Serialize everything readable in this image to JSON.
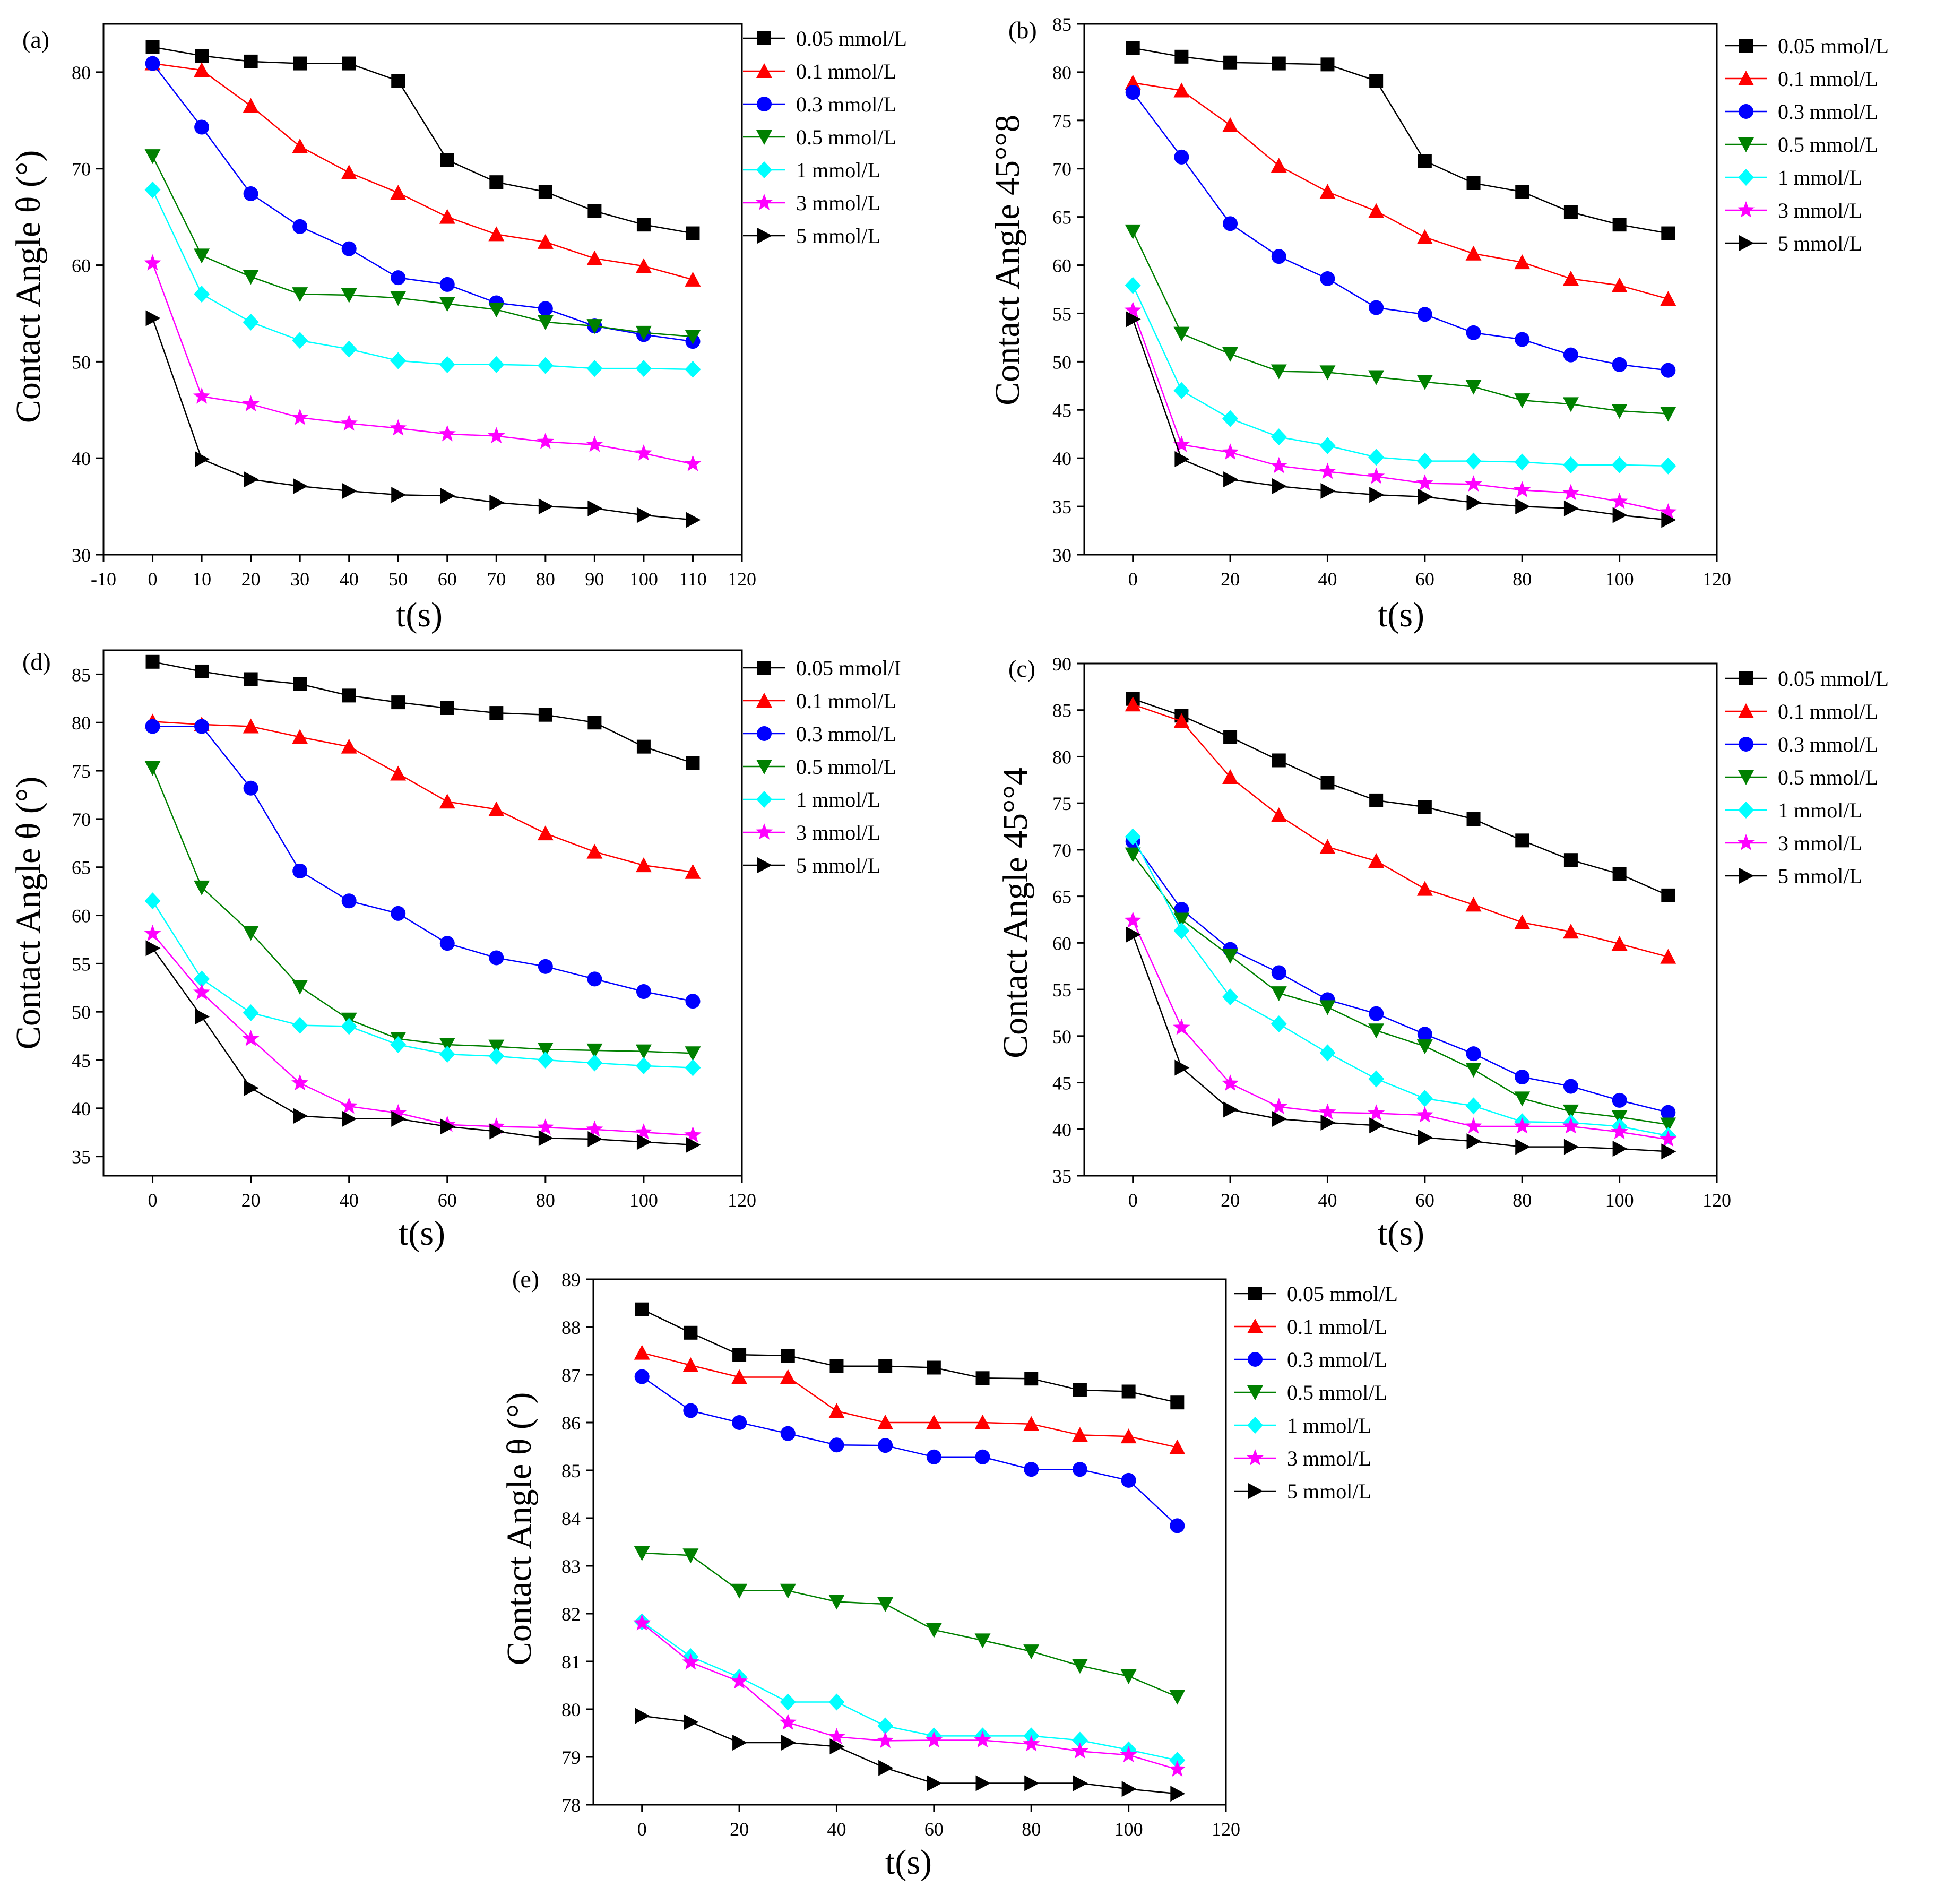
{
  "figure": {
    "colors": {
      "black": "#000000",
      "red": "#ff0000",
      "blue": "#0000ff",
      "green": "#008000",
      "cyan": "#00ffff",
      "magenta": "#ff00ff"
    }
  },
  "chart_data": [
    {
      "id": "a",
      "type": "line",
      "panel_label": "(a)",
      "xlabel": "t(s)",
      "ylabel": "Contact Angle θ (°)",
      "xlim": [
        -10,
        120
      ],
      "ylim": [
        30,
        85
      ],
      "xticks": [
        "-10",
        "0",
        "10",
        "20",
        "30",
        "40",
        "50",
        "60",
        "70",
        "80",
        "90",
        "100",
        "110",
        "120"
      ],
      "yticks": [
        "30",
        "40",
        "50",
        "60",
        "70",
        "80"
      ],
      "x": [
        0,
        10,
        20,
        30,
        40,
        50,
        60,
        70,
        80,
        90,
        100,
        110
      ],
      "series": [
        {
          "name": "0.05 mmol/L",
          "color": "black",
          "marker": "square",
          "values": [
            82.6,
            81.7,
            81.1,
            80.9,
            80.9,
            79.1,
            70.9,
            68.6,
            67.6,
            65.6,
            64.2,
            63.3
          ]
        },
        {
          "name": "0.1 mmol/L",
          "color": "red",
          "marker": "triangle-up",
          "values": [
            80.9,
            80.2,
            76.5,
            72.3,
            69.6,
            67.5,
            65.0,
            63.2,
            62.4,
            60.7,
            59.9,
            58.5
          ]
        },
        {
          "name": "0.3 mmol/L",
          "color": "blue",
          "marker": "circle",
          "values": [
            80.9,
            74.3,
            67.4,
            64.0,
            61.7,
            58.7,
            58.0,
            56.1,
            55.5,
            53.7,
            52.8,
            52.1
          ]
        },
        {
          "name": "0.5 mmol/L",
          "color": "green",
          "marker": "triangle-down",
          "values": [
            71.3,
            61.0,
            58.8,
            57.0,
            56.9,
            56.6,
            56.0,
            55.4,
            54.1,
            53.7,
            53.0,
            52.6
          ]
        },
        {
          "name": "1 mmol/L",
          "color": "cyan",
          "marker": "diamond",
          "values": [
            67.8,
            57.0,
            54.1,
            52.2,
            51.3,
            50.1,
            49.7,
            49.7,
            49.6,
            49.3,
            49.3,
            49.2
          ]
        },
        {
          "name": "3 mmol/L",
          "color": "magenta",
          "marker": "star",
          "values": [
            60.2,
            46.4,
            45.6,
            44.2,
            43.6,
            43.1,
            42.5,
            42.3,
            41.7,
            41.4,
            40.5,
            39.4
          ]
        },
        {
          "name": "5 mmol/L",
          "color": "black",
          "marker": "triangle-right",
          "values": [
            54.5,
            39.9,
            37.8,
            37.1,
            36.6,
            36.2,
            36.1,
            35.4,
            35.0,
            34.8,
            34.1,
            33.6
          ]
        }
      ]
    },
    {
      "id": "b",
      "type": "line",
      "panel_label": "(b)",
      "xlabel": "t(s)",
      "ylabel": "Contact Angle 45°°8",
      "xlim": [
        -10,
        120
      ],
      "ylim": [
        30,
        85
      ],
      "xticks": [
        "0",
        "20",
        "40",
        "60",
        "80",
        "100",
        "120"
      ],
      "yticks": [
        "30",
        "35",
        "40",
        "45",
        "50",
        "55",
        "60",
        "65",
        "70",
        "75",
        "80",
        "85"
      ],
      "x": [
        0,
        10,
        20,
        30,
        40,
        50,
        60,
        70,
        80,
        90,
        100,
        110
      ],
      "series": [
        {
          "name": "0.05 mmol/L",
          "color": "black",
          "marker": "square",
          "values": [
            82.5,
            81.6,
            81.0,
            80.9,
            80.8,
            79.1,
            70.8,
            68.5,
            67.6,
            65.5,
            64.2,
            63.3
          ]
        },
        {
          "name": "0.1 mmol/L",
          "color": "red",
          "marker": "triangle-up",
          "values": [
            78.9,
            78.1,
            74.5,
            70.3,
            67.6,
            65.6,
            62.9,
            61.2,
            60.3,
            58.6,
            57.9,
            56.5
          ]
        },
        {
          "name": "0.3 mmol/L",
          "color": "blue",
          "marker": "circle",
          "values": [
            77.9,
            71.2,
            64.3,
            60.9,
            58.6,
            55.6,
            54.9,
            53.0,
            52.3,
            50.7,
            49.7,
            49.1
          ]
        },
        {
          "name": "0.5 mmol/L",
          "color": "green",
          "marker": "triangle-down",
          "values": [
            63.5,
            52.9,
            50.8,
            49.0,
            48.9,
            48.4,
            47.9,
            47.4,
            46.0,
            45.6,
            44.9,
            44.6
          ]
        },
        {
          "name": "1 mmol/L",
          "color": "cyan",
          "marker": "diamond",
          "values": [
            57.9,
            47.0,
            44.1,
            42.2,
            41.3,
            40.1,
            39.7,
            39.7,
            39.6,
            39.3,
            39.3,
            39.2
          ]
        },
        {
          "name": "3 mmol/L",
          "color": "magenta",
          "marker": "star",
          "values": [
            55.3,
            41.4,
            40.6,
            39.2,
            38.6,
            38.1,
            37.4,
            37.3,
            36.7,
            36.4,
            35.5,
            34.4
          ]
        },
        {
          "name": "5 mmol/L",
          "color": "black",
          "marker": "triangle-right",
          "values": [
            54.4,
            39.9,
            37.8,
            37.1,
            36.6,
            36.2,
            36.0,
            35.4,
            35.0,
            34.8,
            34.1,
            33.6
          ]
        }
      ]
    },
    {
      "id": "d",
      "type": "line",
      "panel_label": "(d)",
      "xlabel": "t(s)",
      "ylabel": "Contact Angle θ (°)",
      "xlim": [
        -10,
        120
      ],
      "ylim": [
        33,
        87.5
      ],
      "xticks": [
        "0",
        "20",
        "40",
        "60",
        "80",
        "100",
        "120"
      ],
      "yticks": [
        "35",
        "40",
        "45",
        "50",
        "55",
        "60",
        "65",
        "70",
        "75",
        "80",
        "85"
      ],
      "x": [
        0,
        10,
        20,
        30,
        40,
        50,
        60,
        70,
        80,
        90,
        100,
        110
      ],
      "series": [
        {
          "name": "0.05 mmol/I",
          "color": "black",
          "marker": "square",
          "values": [
            86.3,
            85.3,
            84.5,
            84.0,
            82.8,
            82.1,
            81.5,
            81.0,
            80.8,
            80.0,
            77.5,
            75.8
          ]
        },
        {
          "name": "0.1 mmol/L",
          "color": "red",
          "marker": "triangle-up",
          "values": [
            80.1,
            79.8,
            79.6,
            78.5,
            77.5,
            74.7,
            71.8,
            71.0,
            68.5,
            66.6,
            65.2,
            64.5
          ]
        },
        {
          "name": "0.3 mmol/L",
          "color": "blue",
          "marker": "circle",
          "values": [
            79.6,
            79.6,
            73.2,
            64.6,
            61.5,
            60.2,
            57.1,
            55.6,
            54.7,
            53.4,
            52.1,
            51.1
          ]
        },
        {
          "name": "0.5 mmol/L",
          "color": "green",
          "marker": "triangle-down",
          "values": [
            75.3,
            62.9,
            58.2,
            52.6,
            49.2,
            47.2,
            46.6,
            46.4,
            46.1,
            46.0,
            45.9,
            45.7
          ]
        },
        {
          "name": "1 mmol/L",
          "color": "cyan",
          "marker": "diamond",
          "values": [
            61.5,
            53.4,
            49.9,
            48.6,
            48.5,
            46.6,
            45.6,
            45.4,
            45.0,
            44.7,
            44.4,
            44.2
          ]
        },
        {
          "name": "3 mmol/L",
          "color": "magenta",
          "marker": "star",
          "values": [
            58.1,
            52.0,
            47.2,
            42.6,
            40.2,
            39.5,
            38.3,
            38.1,
            38.0,
            37.8,
            37.5,
            37.2
          ]
        },
        {
          "name": "5 mmol/L",
          "color": "black",
          "marker": "triangle-right",
          "values": [
            56.6,
            49.5,
            42.1,
            39.2,
            38.9,
            38.9,
            38.1,
            37.6,
            36.9,
            36.8,
            36.5,
            36.2
          ]
        }
      ]
    },
    {
      "id": "c",
      "type": "line",
      "panel_label": "(c)",
      "xlabel": "t(s)",
      "ylabel": "Contact Angle 45°°4",
      "xlim": [
        -10,
        120
      ],
      "ylim": [
        35,
        90
      ],
      "xticks": [
        "0",
        "20",
        "40",
        "60",
        "80",
        "100",
        "120"
      ],
      "yticks": [
        "35",
        "40",
        "45",
        "50",
        "55",
        "60",
        "65",
        "70",
        "75",
        "80",
        "85",
        "90"
      ],
      "x": [
        0,
        10,
        20,
        30,
        40,
        50,
        60,
        70,
        80,
        90,
        100,
        110
      ],
      "series": [
        {
          "name": "0.05 mmol/L",
          "color": "black",
          "marker": "square",
          "values": [
            86.2,
            84.4,
            82.1,
            79.6,
            77.2,
            75.3,
            74.6,
            73.3,
            71.0,
            68.9,
            67.4,
            65.1
          ]
        },
        {
          "name": "0.1 mmol/L",
          "color": "red",
          "marker": "triangle-up",
          "values": [
            85.6,
            83.8,
            77.8,
            73.7,
            70.3,
            68.8,
            65.8,
            64.1,
            62.2,
            61.2,
            59.9,
            58.5
          ]
        },
        {
          "name": "0.3 mmol/L",
          "color": "blue",
          "marker": "circle",
          "values": [
            70.9,
            63.6,
            59.3,
            56.8,
            53.9,
            52.4,
            50.2,
            48.1,
            45.6,
            44.6,
            43.1,
            41.8
          ]
        },
        {
          "name": "0.5 mmol/L",
          "color": "green",
          "marker": "triangle-down",
          "values": [
            69.5,
            62.5,
            58.6,
            54.6,
            53.1,
            50.6,
            48.9,
            46.4,
            43.3,
            41.9,
            41.3,
            40.5
          ]
        },
        {
          "name": "1 mmol/L",
          "color": "cyan",
          "marker": "diamond",
          "values": [
            71.4,
            61.3,
            54.2,
            51.3,
            48.2,
            45.4,
            43.3,
            42.5,
            40.8,
            40.7,
            40.3,
            39.3
          ]
        },
        {
          "name": "3 mmol/L",
          "color": "magenta",
          "marker": "star",
          "values": [
            62.4,
            50.9,
            44.9,
            42.4,
            41.8,
            41.7,
            41.5,
            40.3,
            40.3,
            40.3,
            39.7,
            38.9
          ]
        },
        {
          "name": "5 mmol/L",
          "color": "black",
          "marker": "triangle-right",
          "values": [
            60.9,
            46.6,
            42.1,
            41.1,
            40.7,
            40.4,
            39.1,
            38.7,
            38.1,
            38.1,
            37.9,
            37.6
          ]
        }
      ]
    },
    {
      "id": "e",
      "type": "line",
      "panel_label": "(e)",
      "xlabel": "t(s)",
      "ylabel": "Contact Angle θ (°)",
      "xlim": [
        -10,
        120
      ],
      "ylim": [
        78,
        89
      ],
      "xticks": [
        "0",
        "20",
        "40",
        "60",
        "80",
        "100",
        "120"
      ],
      "yticks": [
        "78",
        "79",
        "80",
        "81",
        "82",
        "83",
        "84",
        "85",
        "86",
        "87",
        "88",
        "89"
      ],
      "x": [
        0,
        10,
        20,
        30,
        40,
        50,
        60,
        70,
        80,
        90,
        100,
        110
      ],
      "series": [
        {
          "name": "0.05 mmol/L",
          "color": "black",
          "marker": "square",
          "values": [
            88.37,
            87.88,
            87.42,
            87.4,
            87.18,
            87.18,
            87.15,
            86.93,
            86.92,
            86.68,
            86.65,
            86.42
          ]
        },
        {
          "name": "0.1 mmol/L",
          "color": "red",
          "marker": "triangle-up",
          "values": [
            87.46,
            87.2,
            86.95,
            86.95,
            86.24,
            86.0,
            86.0,
            86.0,
            85.97,
            85.74,
            85.71,
            85.48
          ]
        },
        {
          "name": "0.3 mmol/L",
          "color": "blue",
          "marker": "circle",
          "values": [
            86.96,
            86.25,
            86.0,
            85.77,
            85.53,
            85.52,
            85.28,
            85.28,
            85.02,
            85.02,
            84.79,
            83.84
          ]
        },
        {
          "name": "0.5 mmol/L",
          "color": "green",
          "marker": "triangle-down",
          "values": [
            83.27,
            83.22,
            82.48,
            82.48,
            82.25,
            82.2,
            81.66,
            81.44,
            81.21,
            80.91,
            80.69,
            80.26
          ]
        },
        {
          "name": "1 mmol/L",
          "color": "cyan",
          "marker": "diamond",
          "values": [
            81.83,
            81.1,
            80.67,
            80.15,
            80.15,
            79.65,
            79.44,
            79.44,
            79.44,
            79.35,
            79.15,
            78.93
          ]
        },
        {
          "name": "3 mmol/L",
          "color": "magenta",
          "marker": "star",
          "values": [
            81.8,
            80.98,
            80.58,
            79.72,
            79.42,
            79.34,
            79.35,
            79.35,
            79.27,
            79.12,
            79.04,
            78.74
          ]
        },
        {
          "name": "5 mmol/L",
          "color": "black",
          "marker": "triangle-right",
          "values": [
            79.86,
            79.73,
            79.3,
            79.3,
            79.22,
            78.77,
            78.45,
            78.45,
            78.45,
            78.45,
            78.33,
            78.23
          ]
        }
      ]
    }
  ]
}
